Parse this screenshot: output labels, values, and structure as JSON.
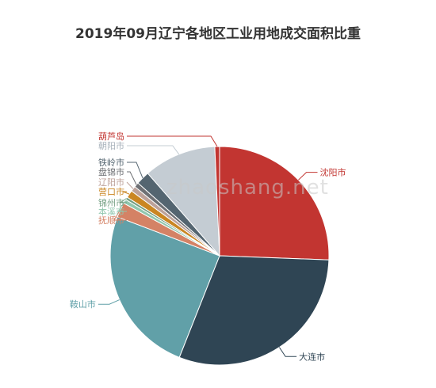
{
  "chart_data": {
    "type": "pie",
    "title": "2019年09月辽宁各地区工业用地成交面积比重",
    "unit": "%",
    "series": [
      {
        "name": "沈阳市",
        "value": 25.6,
        "color": "#c23531"
      },
      {
        "name": "大连市",
        "value": 30.4,
        "color": "#2f4554"
      },
      {
        "name": "鞍山市",
        "value": 24.8,
        "color": "#61a0a8"
      },
      {
        "name": "抚顺市",
        "value": 2.2,
        "color": "#d48265"
      },
      {
        "name": "本溪市",
        "value": 0.6,
        "color": "#91c7ae"
      },
      {
        "name": "锦州市",
        "value": 0.4,
        "color": "#749f83"
      },
      {
        "name": "营口市",
        "value": 1.1,
        "color": "#ca8622"
      },
      {
        "name": "辽阳市",
        "value": 0.8,
        "color": "#bda29a"
      },
      {
        "name": "盘锦市",
        "value": 0.7,
        "color": "#6e7074"
      },
      {
        "name": "铁岭市",
        "value": 2.0,
        "color": "#546570"
      },
      {
        "name": "朝阳市",
        "value": 10.7,
        "color": "#c4ccd3"
      },
      {
        "name": "葫芦岛",
        "value": 0.7,
        "color": "#c23531"
      }
    ]
  },
  "watermark": "zhaoshang.net"
}
